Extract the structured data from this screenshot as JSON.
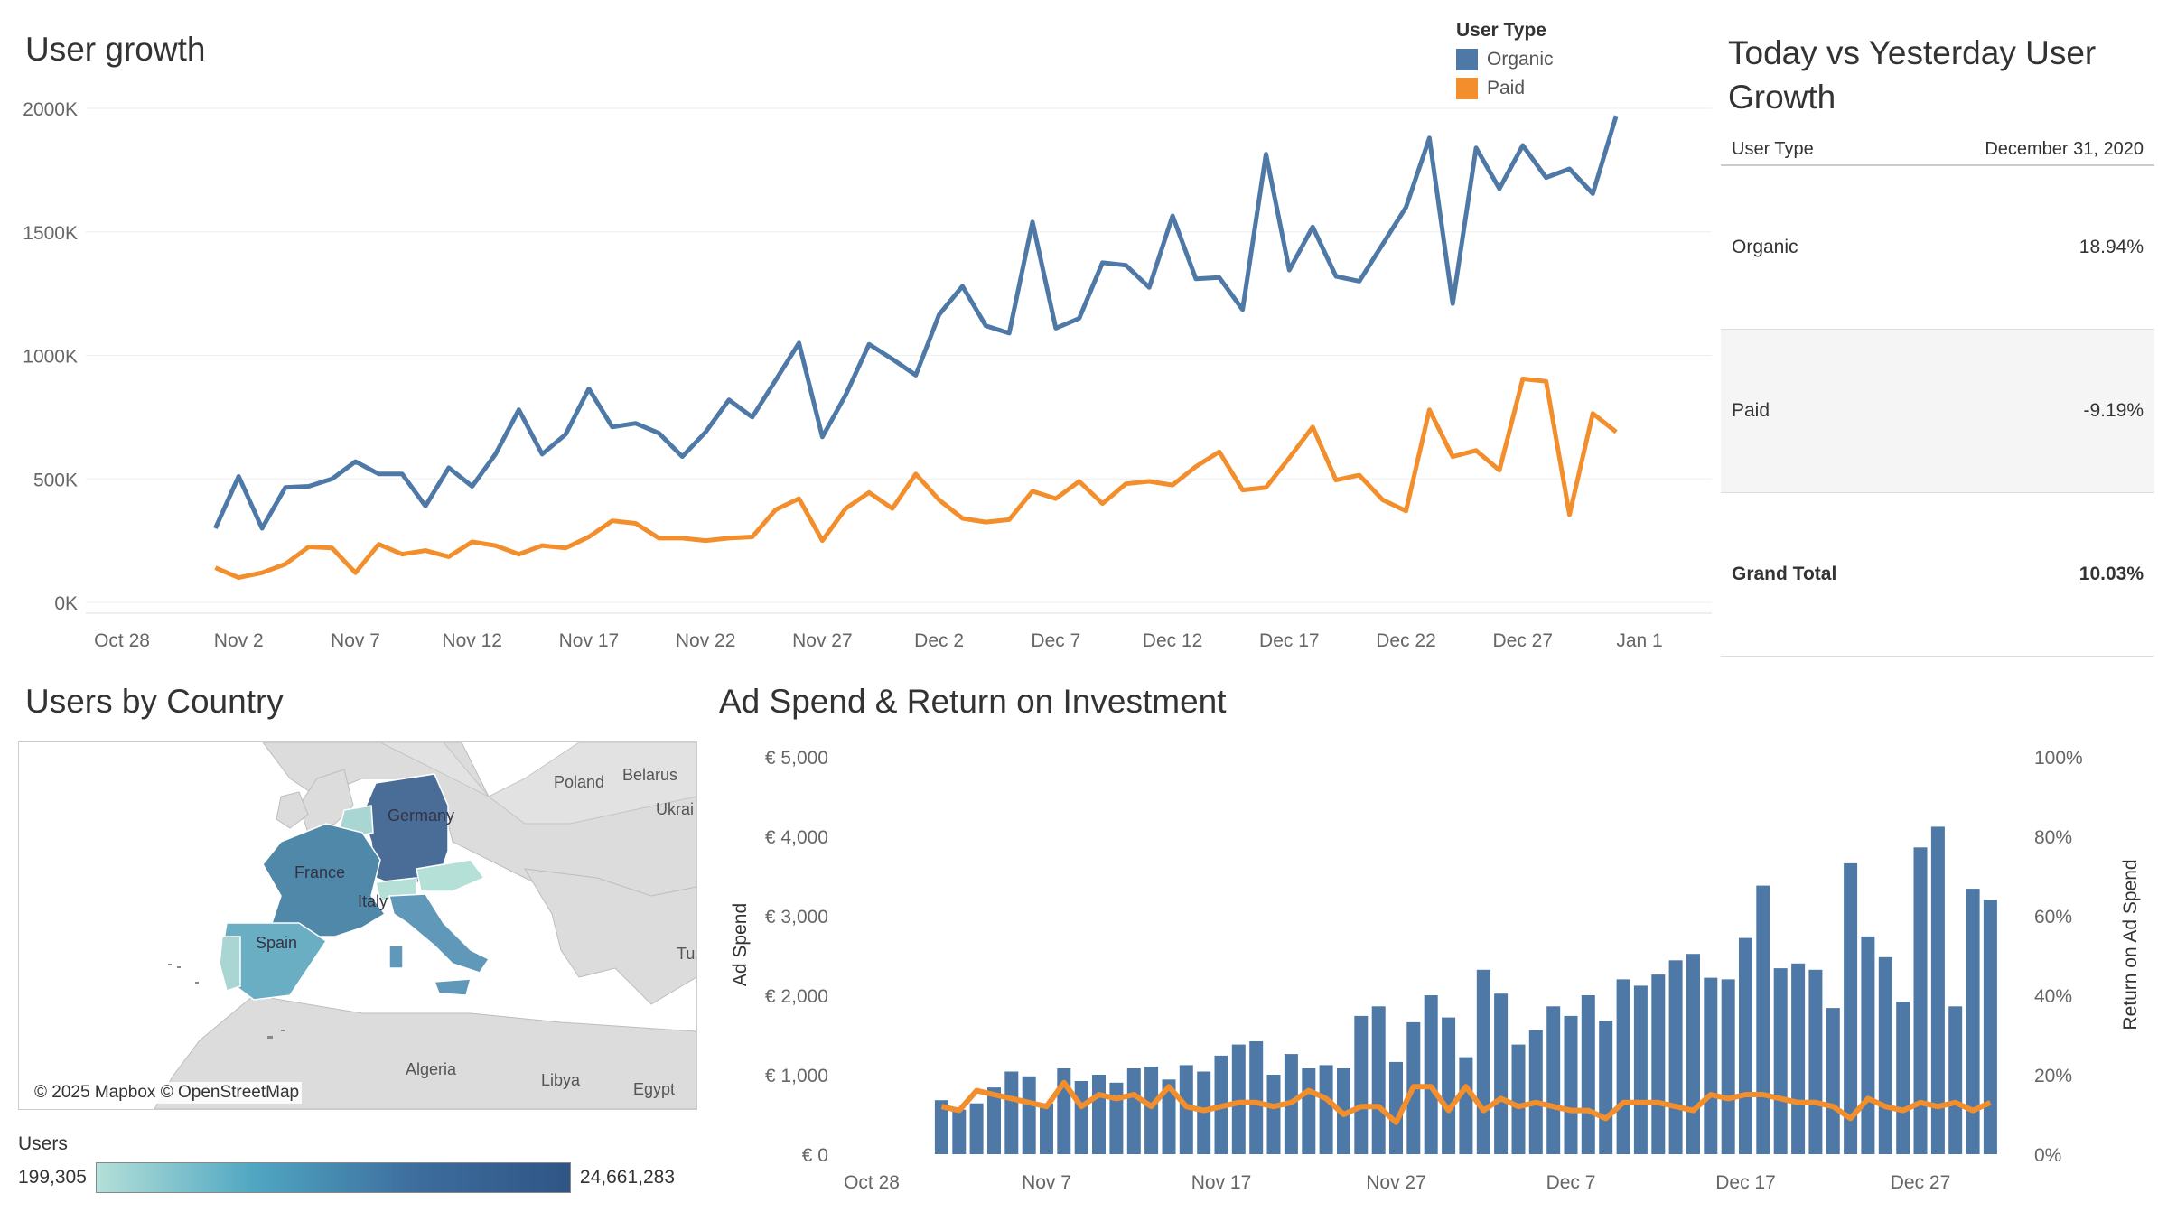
{
  "user_growth": {
    "title": "User growth",
    "legend_title": "User Type",
    "organic_label": "Organic",
    "paid_label": "Paid",
    "organic_color": "#4e79a7",
    "paid_color": "#f28e2b"
  },
  "today_vs_yesterday": {
    "title_line1": "Today vs Yesterday User",
    "title_line2": "Growth",
    "col_type": "User Type",
    "col_date": "December 31, 2020",
    "rows": [
      {
        "type": "Organic",
        "value": "18.94%"
      },
      {
        "type": "Paid",
        "value": "-9.19%"
      },
      {
        "type": "Grand Total",
        "value": "10.03%"
      }
    ]
  },
  "users_by_country": {
    "title": "Users by Country",
    "labels": {
      "poland": "Poland",
      "belarus": "Belarus",
      "ukraine": "Ukrai",
      "germany": "Germany",
      "france": "France",
      "spain": "Spain",
      "italy": "Italy",
      "algeria": "Algeria",
      "libya": "Libya",
      "egypt": "Egypt",
      "turkey": "Tur"
    },
    "attribution": "© 2025 Mapbox © OpenStreetMap",
    "legend_title": "Users",
    "legend_min": "199,305",
    "legend_max": "24,661,283"
  },
  "ad_spend": {
    "title": "Ad Spend & Return on Investment",
    "bar_color": "#4e79a7",
    "line_color": "#f28e2b"
  },
  "chart_data": [
    {
      "type": "line",
      "title": "User growth",
      "x_ticks": [
        "Oct 28",
        "Nov 2",
        "Nov 7",
        "Nov 12",
        "Nov 17",
        "Nov 22",
        "Nov 27",
        "Dec 2",
        "Dec 7",
        "Dec 12",
        "Dec 17",
        "Dec 22",
        "Dec 27",
        "Jan 1"
      ],
      "y_ticks": [
        "0K",
        "500K",
        "1000K",
        "1500K",
        "2000K"
      ],
      "x_range": [
        "Oct 28",
        "Jan 1"
      ],
      "y_range": [
        0,
        2000000
      ],
      "x_start": "Nov 1",
      "x_end": "Dec 31",
      "series": [
        {
          "name": "Organic",
          "values": [
            300000,
            510000,
            300000,
            465000,
            470000,
            500000,
            570000,
            520000,
            520000,
            390000,
            545000,
            470000,
            600000,
            780000,
            600000,
            680000,
            865000,
            710000,
            725000,
            685000,
            590000,
            690000,
            820000,
            750000,
            900000,
            1050000,
            670000,
            840000,
            1045000,
            985000,
            920000,
            1165000,
            1280000,
            1120000,
            1090000,
            1540000,
            1110000,
            1150000,
            1375000,
            1365000,
            1275000,
            1565000,
            1310000,
            1315000,
            1185000,
            1815000,
            1345000,
            1520000,
            1320000,
            1300000,
            1450000,
            1600000,
            1880000,
            1210000,
            1840000,
            1675000,
            1850000,
            1720000,
            1755000,
            1655000,
            1970000
          ]
        },
        {
          "name": "Paid",
          "values": [
            140000,
            100000,
            120000,
            155000,
            225000,
            220000,
            120000,
            235000,
            195000,
            210000,
            185000,
            245000,
            230000,
            195000,
            230000,
            220000,
            265000,
            330000,
            320000,
            260000,
            260000,
            250000,
            260000,
            265000,
            375000,
            420000,
            250000,
            380000,
            445000,
            380000,
            520000,
            415000,
            340000,
            325000,
            335000,
            450000,
            420000,
            490000,
            400000,
            480000,
            490000,
            475000,
            550000,
            610000,
            455000,
            465000,
            585000,
            710000,
            495000,
            515000,
            415000,
            370000,
            780000,
            590000,
            615000,
            535000,
            905000,
            895000,
            355000,
            765000,
            690000
          ]
        }
      ],
      "legend_position": "top-right"
    },
    {
      "type": "bar",
      "title": "Ad Spend & Return on Investment",
      "x_ticks": [
        "Oct 28",
        "Nov 7",
        "Nov 17",
        "Nov 27",
        "Dec 7",
        "Dec 17",
        "Dec 27"
      ],
      "x_start": "Nov 1",
      "x_end": "Dec 31",
      "ylabel": "Ad Spend",
      "y2label": "Return on Ad Spend",
      "y_ticks": [
        "€ 0",
        "€ 1,000",
        "€ 2,000",
        "€ 3,000",
        "€ 4,000",
        "€ 5,000"
      ],
      "y2_ticks": [
        "0%",
        "20%",
        "40%",
        "60%",
        "80%",
        "100%"
      ],
      "ylim": [
        0,
        5000
      ],
      "y2lim": [
        0,
        100
      ],
      "series": [
        {
          "name": "Ad Spend",
          "kind": "bar",
          "values": [
            680,
            560,
            640,
            840,
            1040,
            980,
            640,
            1080,
            920,
            1000,
            900,
            1080,
            1100,
            940,
            1120,
            1040,
            1240,
            1380,
            1420,
            1000,
            1260,
            1080,
            1120,
            1080,
            1740,
            1860,
            1160,
            1660,
            2000,
            1720,
            1220,
            2320,
            2020,
            1380,
            1560,
            1860,
            1740,
            2000,
            1680,
            2200,
            2120,
            2260,
            2440,
            2520,
            2220,
            2200,
            2720,
            3380,
            2340,
            2400,
            2320,
            1840,
            3660,
            2740,
            2480,
            1920,
            3860,
            4120,
            1860,
            3340,
            3200
          ]
        },
        {
          "name": "Return on Ad Spend",
          "kind": "line",
          "values": [
            12,
            11,
            16,
            15,
            14,
            13,
            12,
            18,
            12,
            15,
            14,
            15,
            12,
            17,
            12,
            11,
            12,
            13,
            13,
            12,
            13,
            16,
            14,
            10,
            12,
            12,
            8,
            17,
            17,
            11,
            17,
            11,
            14,
            12,
            13,
            12,
            11,
            11,
            9,
            13,
            13,
            13,
            12,
            11,
            15,
            14,
            15,
            15,
            14,
            13,
            13,
            12,
            9,
            14,
            12,
            11,
            13,
            12,
            13,
            11,
            13
          ]
        }
      ]
    }
  ]
}
